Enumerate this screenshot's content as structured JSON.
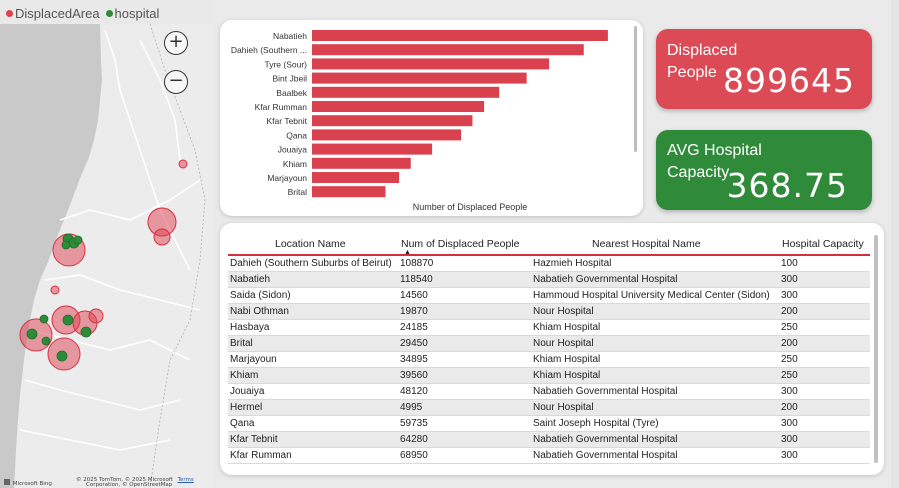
{
  "legend": {
    "items": [
      {
        "label": "DisplacedArea",
        "color": "#e0404f"
      },
      {
        "label": "hospital",
        "color": "#2e8b3a"
      }
    ]
  },
  "map": {
    "zoom_in": "+",
    "zoom_out": "−",
    "credit_provider": "Microsoft Bing",
    "credit_text": "© 2025 TomTom, © 2025 Microsoft",
    "credit_terms": "Terms",
    "credit_line2": "Corporation, © OpenStreetMap"
  },
  "chart_data": {
    "type": "bar",
    "orientation": "horizontal",
    "categories": [
      "Nabatieh",
      "Dahieh (Southern ...",
      "Tyre (Sour)",
      "Bint Jbeil",
      "Baalbek",
      "Kfar Rumman",
      "Kfar Tebnit",
      "Qana",
      "Jouaiya",
      "Khiam",
      "Marjayoun",
      "Brital"
    ],
    "values": [
      118540,
      108870,
      95000,
      86000,
      75000,
      68950,
      64280,
      59735,
      48120,
      39560,
      34895,
      29450
    ],
    "xlabel": "Number of Displaced People",
    "xlim": [
      0,
      125000
    ],
    "color": "#d9414f"
  },
  "kpi": {
    "displaced": {
      "label_line1": "Displaced",
      "label_line2": "People",
      "value": "899645",
      "color": "#dc4a56"
    },
    "hospital": {
      "label_line1": "AVG Hospital",
      "label_line2": "Capacity",
      "value": "368.75",
      "color": "#2f8b3a"
    }
  },
  "table": {
    "headers": [
      "Location Name",
      "Num of Displaced People",
      "Nearest Hospital Name",
      "Hospital Capacity"
    ],
    "rows": [
      [
        "Dahieh (Southern Suburbs of Beirut)",
        "108870",
        "Hazmieh Hospital",
        "100"
      ],
      [
        "Nabatieh",
        "118540",
        "Nabatieh Governmental Hospital",
        "300"
      ],
      [
        "Saida (Sidon)",
        "14560",
        "Hammoud Hospital University Medical Center (Sidon)",
        "300"
      ],
      [
        "Nabi Othman",
        "19870",
        "Nour Hospital",
        "200"
      ],
      [
        "Hasbaya",
        "24185",
        "Khiam Hospital",
        "250"
      ],
      [
        "Brital",
        "29450",
        "Nour Hospital",
        "200"
      ],
      [
        "Marjayoun",
        "34895",
        "Khiam Hospital",
        "250"
      ],
      [
        "Khiam",
        "39560",
        "Khiam Hospital",
        "250"
      ],
      [
        "Jouaiya",
        "48120",
        "Nabatieh Governmental Hospital",
        "300"
      ],
      [
        "Hermel",
        "4995",
        "Nour Hospital",
        "200"
      ],
      [
        "Qana",
        "59735",
        "Saint Joseph Hospital (Tyre)",
        "300"
      ],
      [
        "Kfar Tebnit",
        "64280",
        "Nabatieh Governmental Hospital",
        "300"
      ],
      [
        "Kfar Rumman",
        "68950",
        "Nabatieh Governmental Hospital",
        "300"
      ]
    ]
  }
}
